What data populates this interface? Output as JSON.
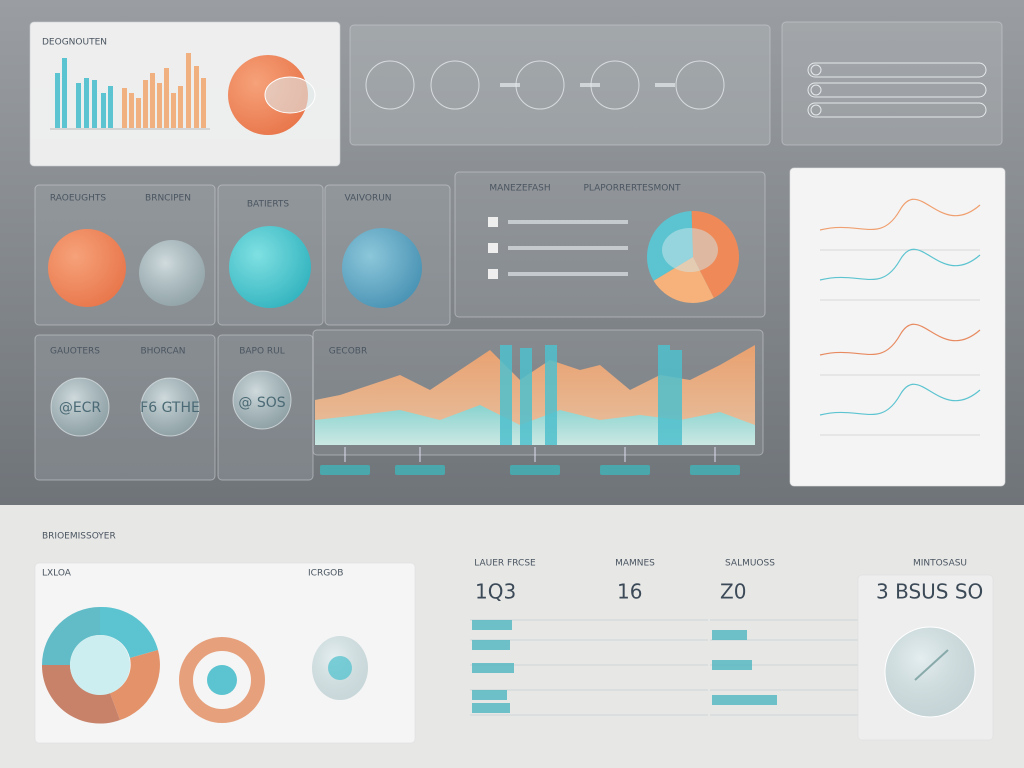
{
  "header": {
    "title": "DEOGNOUTEN"
  },
  "top_cards": [
    {
      "label": "RAOEUGHTS"
    },
    {
      "label": "BRNCIPEN"
    },
    {
      "label": "BATIERTS"
    },
    {
      "label": "VAIVORUN"
    }
  ],
  "mid_cards": [
    {
      "label": "GAUOTERS",
      "value": "@ECR"
    },
    {
      "label": "BHORCAN",
      "value": "F6 GTHE"
    },
    {
      "label": "BAPO RUL",
      "value": "@ SOS"
    },
    {
      "label": "GECOBR"
    }
  ],
  "pie_panel": {
    "title": "MANEZEFASH",
    "subtitle": "PLAPORRERTESMONT"
  },
  "bottom": {
    "title": "BRIOEMISSOYER",
    "badge": "LXLOA",
    "tab": "ICRGOB",
    "stats": [
      {
        "label": "LAUER FRCSE",
        "value": "1Q3"
      },
      {
        "label": "MAMNES",
        "value": "16"
      },
      {
        "label": "SALMUOSS",
        "value": "Z0"
      },
      {
        "label": "MINTOSASU",
        "value": "3 BSUS SO"
      }
    ]
  }
}
